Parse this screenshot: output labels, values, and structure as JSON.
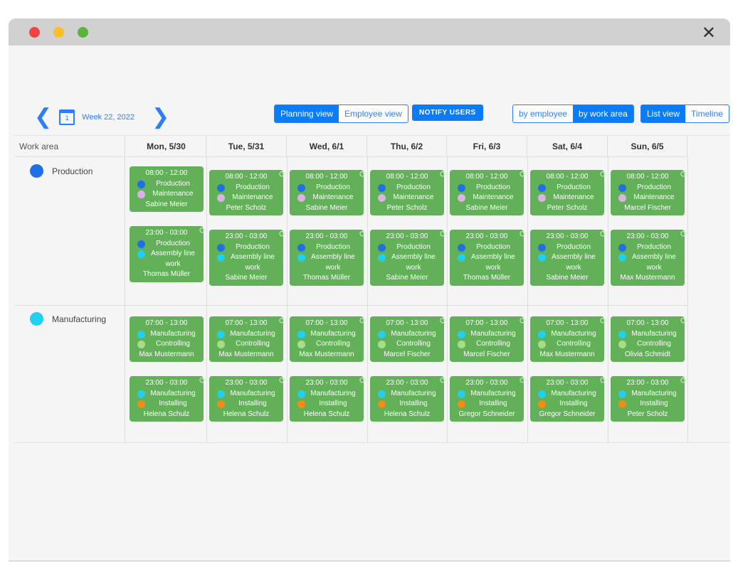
{
  "window": {
    "close_icon": "close-icon",
    "controls": [
      "#ef4444",
      "#fbbf24",
      "#5bb33d"
    ]
  },
  "nav": {
    "week_label": "Week 22, 2022",
    "calendar_day": "1",
    "prev_icon": "chevron-left-icon",
    "next_icon": "chevron-right-icon"
  },
  "view_toggle": {
    "planning": "Planning view",
    "employee": "Employee view",
    "active": "planning"
  },
  "notify_label": "NOTIFY USERS",
  "group_toggle": {
    "by_employee": "by employee",
    "by_work_area": "by work area",
    "active": "by_work_area"
  },
  "layout_toggle": {
    "list": "List view",
    "timeline": "Timeline",
    "active": "list"
  },
  "grid": {
    "area_header": "Work area",
    "days": [
      "Mon, 5/30",
      "Tue, 5/31",
      "Wed, 6/1",
      "Thu, 6/2",
      "Fri, 6/3",
      "Sat, 6/4",
      "Sun, 6/5"
    ],
    "colors": {
      "Production": "#1f6fe8",
      "Maintenance": "#dcb2e6",
      "Assembly line work": "#1fd0f0",
      "Manufacturing": "#1fd0f0",
      "Controlling": "#a9dc86",
      "Installing": "#f68c0f"
    },
    "areas": [
      {
        "name": "Production",
        "color": "#1f6fe8",
        "shifts": [
          {
            "time": "08:00 - 12:00",
            "roles": [
              "Production",
              "Maintenance"
            ],
            "employees": [
              "Sabine Meier",
              "Peter Scholz",
              "Sabine Meier",
              "Peter Scholz",
              "Sabine Meier",
              "Peter Scholz",
              "Marcel Fischer"
            ],
            "recurring": [
              false,
              true,
              true,
              true,
              true,
              true,
              true
            ]
          },
          {
            "time": "23:00 - 03:00",
            "roles": [
              "Production",
              "Assembly line work"
            ],
            "employees": [
              "Thomas Müller",
              "Sabine Meier",
              "Thomas Müller",
              "Sabine Meier",
              "Thomas Müller",
              "Sabine Meier",
              "Max Mustermann"
            ],
            "recurring": [
              true,
              true,
              true,
              true,
              true,
              true,
              true
            ]
          }
        ]
      },
      {
        "name": "Manufacturing",
        "color": "#1fd0f0",
        "shifts": [
          {
            "time": "07:00 - 13:00",
            "roles": [
              "Manufacturing",
              "Controlling"
            ],
            "employees": [
              "Max Mustermann",
              "Max Mustermann",
              "Max Mustermann",
              "Marcel Fischer",
              "Marcel Fischer",
              "Max Mustermann",
              "Olivia Schmidt"
            ],
            "recurring": [
              false,
              true,
              true,
              true,
              true,
              true,
              true
            ]
          },
          {
            "time": "23:00 - 03:00",
            "roles": [
              "Manufacturing",
              "Installing"
            ],
            "employees": [
              "Helena Schulz",
              "Helena Schulz",
              "Helena Schulz",
              "Helena Schulz",
              "Gregor Schneider",
              "Gregor Schneider",
              "Peter Scholz"
            ],
            "recurring": [
              true,
              true,
              true,
              true,
              true,
              true,
              true
            ]
          }
        ]
      }
    ]
  }
}
